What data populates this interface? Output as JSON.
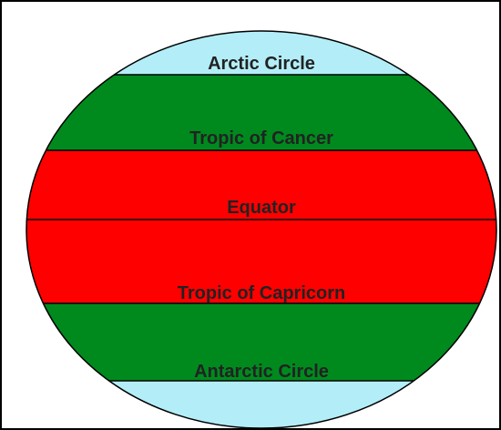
{
  "diagram": {
    "labels": [
      "Arctic Circle",
      "Tropic of Cancer",
      "Equator",
      "Tropic of Capricorn",
      "Antarctic Circle"
    ]
  }
}
